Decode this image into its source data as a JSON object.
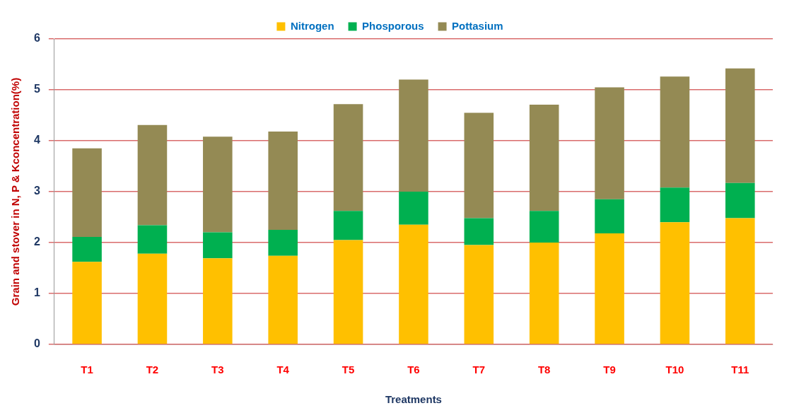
{
  "chart_data": {
    "type": "bar",
    "stacked": true,
    "xlabel": "Treatments",
    "ylabel": "Grain and stover in N, P & Kconcentration(%)",
    "categories": [
      "T1",
      "T2",
      "T3",
      "T4",
      "T5",
      "T6",
      "T7",
      "T8",
      "T9",
      "T10",
      "T11"
    ],
    "series": [
      {
        "name": "Nitrogen",
        "color": "#ffc000",
        "values": [
          1.62,
          1.78,
          1.69,
          1.74,
          2.05,
          2.35,
          1.95,
          2.0,
          2.18,
          2.4,
          2.48
        ]
      },
      {
        "name": "Phosporous",
        "color": "#00b050",
        "values": [
          0.49,
          0.56,
          0.51,
          0.51,
          0.57,
          0.65,
          0.53,
          0.62,
          0.67,
          0.68,
          0.69
        ]
      },
      {
        "name": "Pottasium",
        "color": "#948a54",
        "values": [
          1.74,
          1.97,
          1.88,
          1.93,
          2.1,
          2.2,
          2.07,
          2.09,
          2.2,
          2.18,
          2.25
        ]
      }
    ],
    "ylim": [
      0,
      6
    ],
    "yticks": [
      0,
      1,
      2,
      3,
      4,
      5,
      6
    ],
    "grid": "y",
    "legend": "top"
  }
}
